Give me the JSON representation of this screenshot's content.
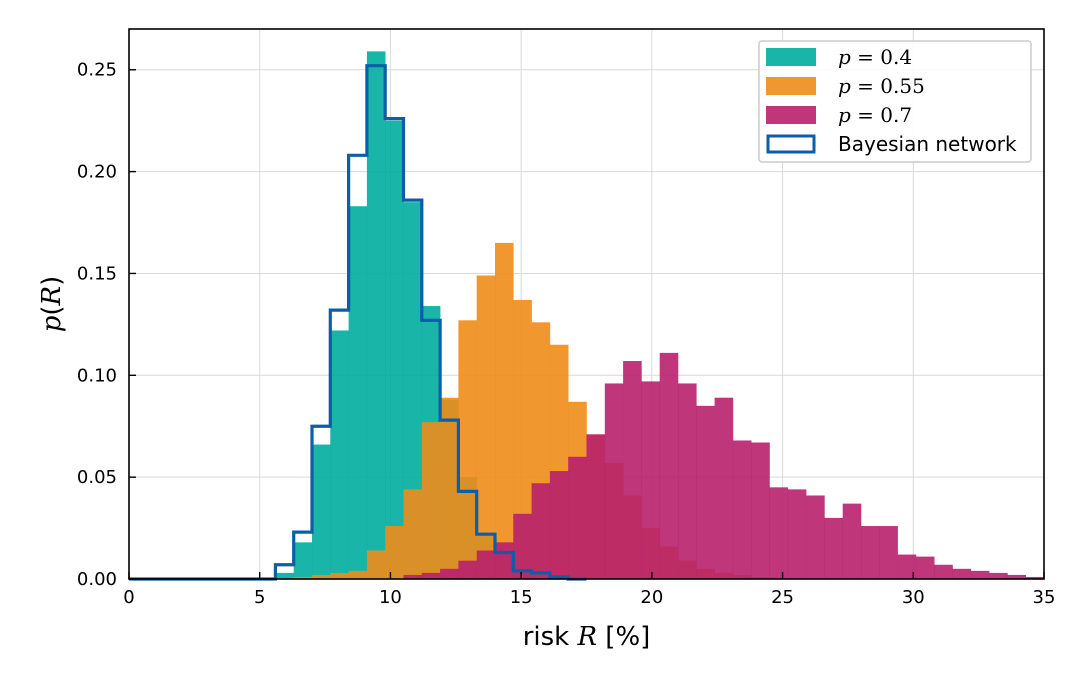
{
  "chart_data": {
    "type": "histogram",
    "xlabel": {
      "prefix": "risk ",
      "var": "R",
      "suffix": " [%]"
    },
    "ylabel": {
      "func": "p",
      "open": "(",
      "var": "R",
      "close": ")"
    },
    "xlim": [
      0,
      35
    ],
    "ylim": [
      0,
      0.27
    ],
    "xticks": [
      0,
      5,
      10,
      15,
      20,
      25,
      30,
      35
    ],
    "yticks": [
      0.0,
      0.05,
      0.1,
      0.15,
      0.2,
      0.25
    ],
    "xtick_labels": [
      "0",
      "5",
      "10",
      "15",
      "20",
      "25",
      "30",
      "35"
    ],
    "ytick_labels": [
      "0.00",
      "0.05",
      "0.10",
      "0.15",
      "0.20",
      "0.25"
    ],
    "grid": true,
    "legend_position": "top-right",
    "colors": {
      "p04": "#00ad9f",
      "p055": "#f08c1a",
      "p07": "#b8206d",
      "bayes": "#0b5ea8",
      "grid": "#d9d9d9"
    },
    "bin_width": 0.7,
    "series": [
      {
        "key": "p04",
        "kind": "filled",
        "label_var": "p",
        "label_eq": " = 0.4",
        "bins": [
          {
            "x": 5.6,
            "y": 0.003
          },
          {
            "x": 6.3,
            "y": 0.018
          },
          {
            "x": 7.0,
            "y": 0.066
          },
          {
            "x": 7.7,
            "y": 0.122
          },
          {
            "x": 8.4,
            "y": 0.183
          },
          {
            "x": 9.1,
            "y": 0.259
          },
          {
            "x": 9.8,
            "y": 0.225
          },
          {
            "x": 10.5,
            "y": 0.185
          },
          {
            "x": 11.2,
            "y": 0.134
          },
          {
            "x": 11.9,
            "y": 0.088
          },
          {
            "x": 12.6,
            "y": 0.05
          },
          {
            "x": 13.3,
            "y": 0.022
          },
          {
            "x": 14.0,
            "y": 0.013
          },
          {
            "x": 14.7,
            "y": 0.006
          },
          {
            "x": 15.4,
            "y": 0.002
          }
        ]
      },
      {
        "key": "p055",
        "kind": "filled",
        "label_var": "p",
        "label_eq": " = 0.55",
        "bins": [
          {
            "x": 6.3,
            "y": 0.001
          },
          {
            "x": 7.0,
            "y": 0.002
          },
          {
            "x": 7.7,
            "y": 0.003
          },
          {
            "x": 8.4,
            "y": 0.004
          },
          {
            "x": 9.1,
            "y": 0.014
          },
          {
            "x": 9.8,
            "y": 0.026
          },
          {
            "x": 10.5,
            "y": 0.044
          },
          {
            "x": 11.2,
            "y": 0.077
          },
          {
            "x": 11.9,
            "y": 0.089
          },
          {
            "x": 12.6,
            "y": 0.127
          },
          {
            "x": 13.3,
            "y": 0.149
          },
          {
            "x": 14.0,
            "y": 0.165
          },
          {
            "x": 14.7,
            "y": 0.137
          },
          {
            "x": 15.4,
            "y": 0.126
          },
          {
            "x": 16.1,
            "y": 0.115
          },
          {
            "x": 16.8,
            "y": 0.087
          },
          {
            "x": 17.5,
            "y": 0.071
          },
          {
            "x": 18.2,
            "y": 0.057
          },
          {
            "x": 18.9,
            "y": 0.041
          },
          {
            "x": 19.6,
            "y": 0.025
          },
          {
            "x": 20.3,
            "y": 0.016
          },
          {
            "x": 21.0,
            "y": 0.009
          },
          {
            "x": 21.7,
            "y": 0.005
          },
          {
            "x": 22.4,
            "y": 0.003
          },
          {
            "x": 23.1,
            "y": 0.002
          },
          {
            "x": 23.8,
            "y": 0.001
          }
        ]
      },
      {
        "key": "p07",
        "kind": "filled",
        "label_var": "p",
        "label_eq": " = 0.7",
        "bins": [
          {
            "x": 10.5,
            "y": 0.002
          },
          {
            "x": 11.2,
            "y": 0.003
          },
          {
            "x": 11.9,
            "y": 0.005
          },
          {
            "x": 12.6,
            "y": 0.009
          },
          {
            "x": 13.3,
            "y": 0.014
          },
          {
            "x": 14.0,
            "y": 0.018
          },
          {
            "x": 14.7,
            "y": 0.032
          },
          {
            "x": 15.4,
            "y": 0.047
          },
          {
            "x": 16.1,
            "y": 0.053
          },
          {
            "x": 16.8,
            "y": 0.06
          },
          {
            "x": 17.5,
            "y": 0.071
          },
          {
            "x": 18.2,
            "y": 0.096
          },
          {
            "x": 18.9,
            "y": 0.107
          },
          {
            "x": 19.6,
            "y": 0.097
          },
          {
            "x": 20.3,
            "y": 0.111
          },
          {
            "x": 21.0,
            "y": 0.096
          },
          {
            "x": 21.7,
            "y": 0.085
          },
          {
            "x": 22.4,
            "y": 0.089
          },
          {
            "x": 23.1,
            "y": 0.068
          },
          {
            "x": 23.8,
            "y": 0.067
          },
          {
            "x": 24.5,
            "y": 0.045
          },
          {
            "x": 25.2,
            "y": 0.044
          },
          {
            "x": 25.9,
            "y": 0.041
          },
          {
            "x": 26.6,
            "y": 0.03
          },
          {
            "x": 27.3,
            "y": 0.037
          },
          {
            "x": 28.0,
            "y": 0.026
          },
          {
            "x": 28.7,
            "y": 0.026
          },
          {
            "x": 29.4,
            "y": 0.012
          },
          {
            "x": 30.1,
            "y": 0.011
          },
          {
            "x": 30.8,
            "y": 0.007
          },
          {
            "x": 31.5,
            "y": 0.005
          },
          {
            "x": 32.2,
            "y": 0.004
          },
          {
            "x": 32.9,
            "y": 0.003
          },
          {
            "x": 33.6,
            "y": 0.002
          },
          {
            "x": 34.3,
            "y": 0.001
          }
        ]
      },
      {
        "key": "bayes",
        "kind": "step",
        "label": "Bayesian network",
        "bins": [
          {
            "x": 0.0,
            "y": 0.0
          },
          {
            "x": 0.7,
            "y": 0.0
          },
          {
            "x": 1.4,
            "y": 0.0
          },
          {
            "x": 2.1,
            "y": 0.0
          },
          {
            "x": 2.8,
            "y": 0.0
          },
          {
            "x": 3.5,
            "y": 0.0
          },
          {
            "x": 4.2,
            "y": 0.0
          },
          {
            "x": 4.9,
            "y": 0.0
          },
          {
            "x": 5.6,
            "y": 0.007
          },
          {
            "x": 6.3,
            "y": 0.023
          },
          {
            "x": 7.0,
            "y": 0.075
          },
          {
            "x": 7.7,
            "y": 0.132
          },
          {
            "x": 8.4,
            "y": 0.208
          },
          {
            "x": 9.1,
            "y": 0.252
          },
          {
            "x": 9.8,
            "y": 0.226
          },
          {
            "x": 10.5,
            "y": 0.186
          },
          {
            "x": 11.2,
            "y": 0.127
          },
          {
            "x": 11.9,
            "y": 0.078
          },
          {
            "x": 12.6,
            "y": 0.043
          },
          {
            "x": 13.3,
            "y": 0.022
          },
          {
            "x": 14.0,
            "y": 0.013
          },
          {
            "x": 14.7,
            "y": 0.004
          },
          {
            "x": 15.4,
            "y": 0.003
          },
          {
            "x": 16.1,
            "y": 0.001
          },
          {
            "x": 16.8,
            "y": 0.0
          }
        ]
      }
    ]
  }
}
